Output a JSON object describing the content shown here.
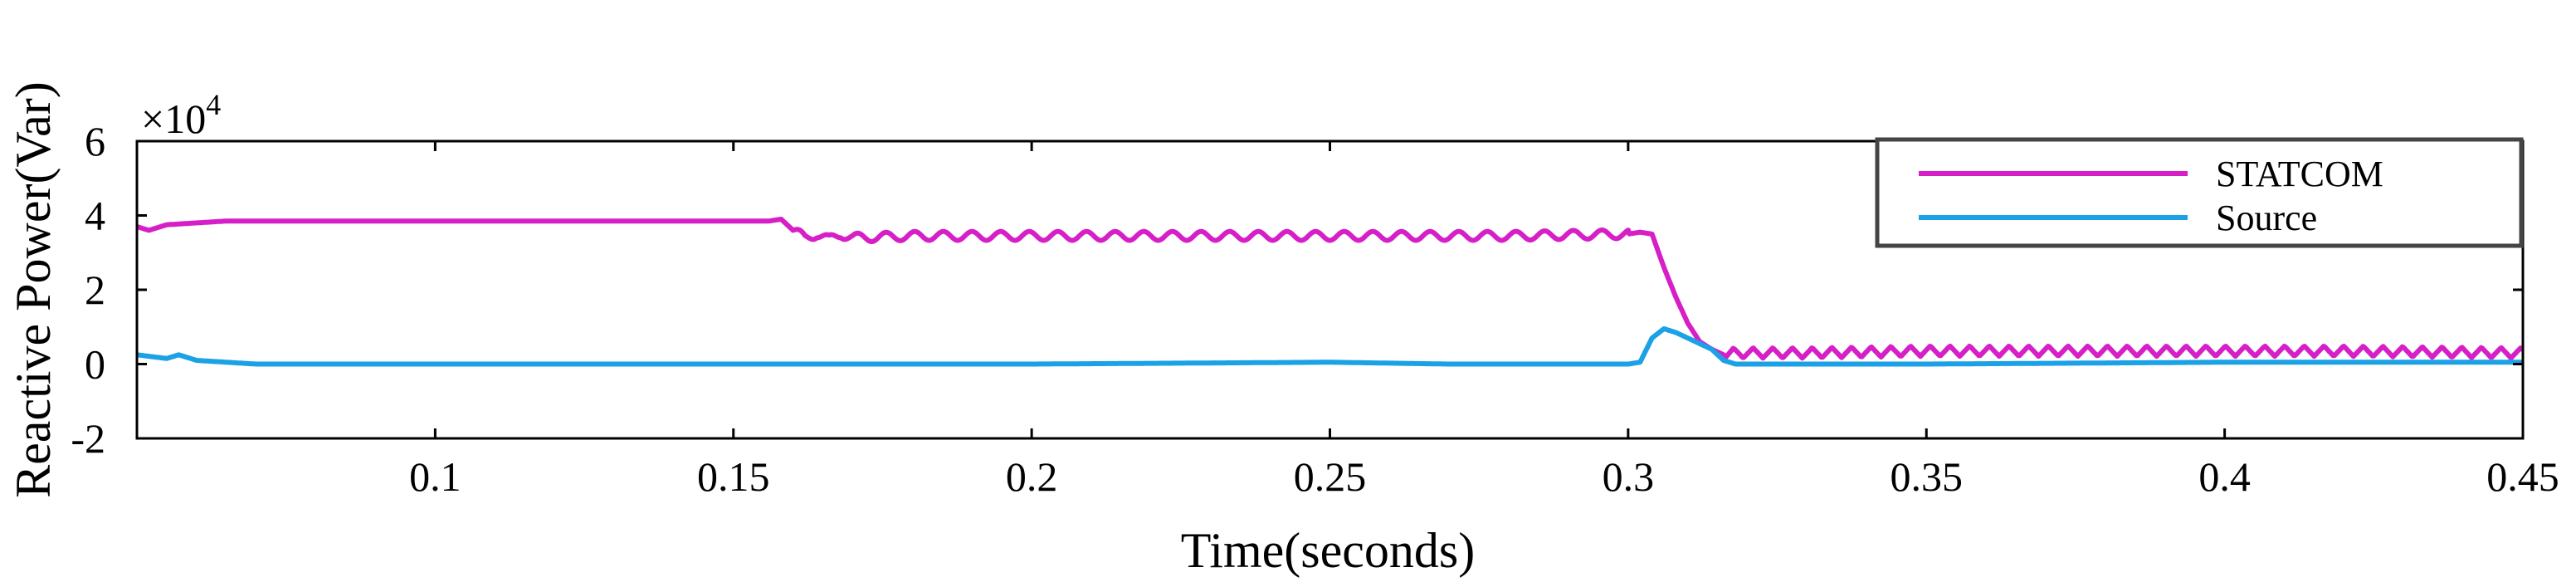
{
  "chart_data": {
    "type": "line",
    "title": "",
    "xlabel": "Time(seconds)",
    "ylabel": "Reactive Power(Var)",
    "y_multiplier": "×10",
    "y_multiplier_exponent": "4",
    "xlim": [
      0.05,
      0.45
    ],
    "ylim": [
      -2,
      6
    ],
    "x_ticks": [
      0.1,
      0.15,
      0.2,
      0.25,
      0.3,
      0.35,
      0.4,
      0.45
    ],
    "x_tick_labels": [
      "0.1",
      "0.15",
      "0.2",
      "0.25",
      "0.3",
      "0.35",
      "0.4",
      "0.45"
    ],
    "y_ticks": [
      -2,
      0,
      2,
      4,
      6
    ],
    "y_tick_labels": [
      "-2",
      "0",
      "2",
      "4",
      "6"
    ],
    "grid": false,
    "legend_position": "top-right",
    "series": [
      {
        "name": "STATCOM",
        "color": "#d61fc7",
        "x": [
          0.05,
          0.052,
          0.055,
          0.06,
          0.065,
          0.07,
          0.1,
          0.15,
          0.156,
          0.158,
          0.16,
          0.162,
          0.164,
          0.166,
          0.168,
          0.17,
          0.18,
          0.2,
          0.22,
          0.24,
          0.26,
          0.28,
          0.3,
          0.302,
          0.304,
          0.306,
          0.308,
          0.31,
          0.312,
          0.314,
          0.316,
          0.318,
          0.32,
          0.33,
          0.35,
          0.38,
          0.4,
          0.42,
          0.45
        ],
        "y": [
          3.7,
          3.6,
          3.75,
          3.8,
          3.85,
          3.85,
          3.85,
          3.85,
          3.85,
          3.9,
          3.6,
          3.4,
          3.5,
          3.35,
          3.5,
          3.4,
          3.45,
          3.45,
          3.45,
          3.45,
          3.45,
          3.45,
          3.5,
          3.55,
          3.5,
          2.6,
          1.8,
          1.1,
          0.6,
          0.4,
          0.25,
          0.3,
          0.3,
          0.3,
          0.35,
          0.35,
          0.35,
          0.35,
          0.3
        ],
        "oscillation_start": 0.16,
        "oscillation_end": 0.3,
        "oscillation_amplitude": 0.12,
        "tail_ripple_start": 0.316,
        "tail_ripple_amplitude": 0.28
      },
      {
        "name": "Source",
        "color": "#1ba1e6",
        "x": [
          0.05,
          0.055,
          0.057,
          0.06,
          0.065,
          0.07,
          0.1,
          0.15,
          0.2,
          0.25,
          0.27,
          0.3,
          0.302,
          0.304,
          0.306,
          0.308,
          0.31,
          0.312,
          0.314,
          0.316,
          0.318,
          0.32,
          0.35,
          0.4,
          0.45
        ],
        "y": [
          0.25,
          0.15,
          0.25,
          0.1,
          0.05,
          0.0,
          0.0,
          0.0,
          0.0,
          0.05,
          0.0,
          0.0,
          0.05,
          0.7,
          0.95,
          0.85,
          0.7,
          0.55,
          0.4,
          0.1,
          0.0,
          0.0,
          0.0,
          0.05,
          0.05
        ]
      }
    ]
  }
}
